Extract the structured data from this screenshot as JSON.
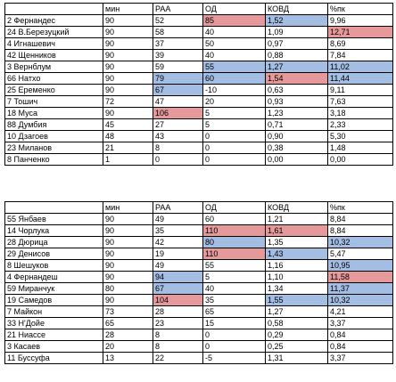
{
  "tables": [
    {
      "headers": [
        "",
        "мин",
        "РАА",
        "ОД",
        "КОВД",
        "%пк"
      ],
      "rows": [
        {
          "cells": [
            "2 Фернандес",
            "90",
            "52",
            "85",
            "1,52",
            "9,96"
          ],
          "hl": [
            "",
            "",
            "",
            "red",
            "blue",
            ""
          ]
        },
        {
          "cells": [
            "24 В.Березуцкий",
            "90",
            "58",
            "40",
            "1,09",
            "12,71"
          ],
          "hl": [
            "",
            "",
            "",
            "",
            "",
            "red"
          ]
        },
        {
          "cells": [
            "4 Игнашевич",
            "90",
            "37",
            "50",
            "0,97",
            "8,69"
          ],
          "hl": [
            "",
            "",
            "",
            "",
            "",
            ""
          ]
        },
        {
          "cells": [
            "42 Щенников",
            "90",
            "39",
            "40",
            "0,88",
            "7,84"
          ],
          "hl": [
            "",
            "",
            "",
            "",
            "",
            ""
          ]
        },
        {
          "cells": [
            "3 Вернблум",
            "90",
            "59",
            "55",
            "1,27",
            "11,02"
          ],
          "hl": [
            "",
            "",
            "",
            "blue",
            "blue",
            "blue"
          ]
        },
        {
          "cells": [
            "66 Натхо",
            "90",
            "79",
            "60",
            "1,54",
            "11,44"
          ],
          "hl": [
            "",
            "",
            "blue",
            "blue",
            "red",
            "blue"
          ]
        },
        {
          "cells": [
            "25 Еременко",
            "90",
            "67",
            "-10",
            "0,63",
            "9,11"
          ],
          "hl": [
            "",
            "",
            "blue",
            "",
            "",
            ""
          ]
        },
        {
          "cells": [
            "7 Тошич",
            "72",
            "47",
            "20",
            "0,93",
            "7,63"
          ],
          "hl": [
            "",
            "",
            "",
            "",
            "",
            ""
          ]
        },
        {
          "cells": [
            "18 Муса",
            "90",
            "106",
            "5",
            "1,23",
            "3,18"
          ],
          "hl": [
            "",
            "",
            "red",
            "",
            "",
            ""
          ]
        },
        {
          "cells": [
            "88 Думбия",
            "45",
            "27",
            "5",
            "0,71",
            "2,33"
          ],
          "hl": [
            "",
            "",
            "",
            "",
            "",
            ""
          ]
        },
        {
          "cells": [
            "10 Дзагоев",
            "48",
            "43",
            "0",
            "0,90",
            "5,30"
          ],
          "hl": [
            "",
            "",
            "",
            "",
            "",
            ""
          ]
        },
        {
          "cells": [
            "23 Миланов",
            "21",
            "8",
            "0",
            "0,38",
            "1,48"
          ],
          "hl": [
            "",
            "",
            "",
            "",
            "",
            ""
          ]
        },
        {
          "cells": [
            "8 Панченко",
            "1",
            "0",
            "0",
            "0,00",
            "0,00"
          ],
          "hl": [
            "",
            "",
            "",
            "",
            "",
            ""
          ]
        }
      ]
    },
    {
      "headers": [
        "",
        "мин",
        "РАА",
        "ОД",
        "КОВД",
        "%пк"
      ],
      "rows": [
        {
          "cells": [
            "55 Янбаев",
            "90",
            "49",
            "60",
            "1,21",
            "8,84"
          ],
          "hl": [
            "",
            "",
            "",
            "",
            "",
            ""
          ]
        },
        {
          "cells": [
            "14 Чорлука",
            "90",
            "35",
            "110",
            "1,61",
            "8,84"
          ],
          "hl": [
            "",
            "",
            "",
            "red",
            "red",
            ""
          ]
        },
        {
          "cells": [
            "28 Дюрица",
            "90",
            "42",
            "80",
            "1,35",
            "10,32"
          ],
          "hl": [
            "",
            "",
            "",
            "blue",
            "",
            "blue"
          ]
        },
        {
          "cells": [
            "29 Денисов",
            "90",
            "19",
            "110",
            "1,43",
            "5,47"
          ],
          "hl": [
            "",
            "",
            "",
            "red",
            "blue",
            ""
          ]
        },
        {
          "cells": [
            "8 Шешуков",
            "90",
            "49",
            "55",
            "1,16",
            "10,95"
          ],
          "hl": [
            "",
            "",
            "",
            "",
            "",
            "blue"
          ]
        },
        {
          "cells": [
            "4 Фернандеш",
            "90",
            "94",
            "5",
            "1,10",
            "11,58"
          ],
          "hl": [
            "",
            "",
            "blue",
            "",
            "",
            "red"
          ]
        },
        {
          "cells": [
            "59 Миранчук",
            "80",
            "67",
            "40",
            "1,34",
            "11,37"
          ],
          "hl": [
            "",
            "",
            "blue",
            "",
            "",
            "blue"
          ]
        },
        {
          "cells": [
            "19 Самедов",
            "90",
            "104",
            "35",
            "1,55",
            "10,32"
          ],
          "hl": [
            "",
            "",
            "red",
            "",
            "blue",
            "blue"
          ]
        },
        {
          "cells": [
            "7 Майкон",
            "73",
            "28",
            "65",
            "1,27",
            "4,21"
          ],
          "hl": [
            "",
            "",
            "",
            "",
            "",
            ""
          ]
        },
        {
          "cells": [
            "33 Н'Дойе",
            "65",
            "23",
            "15",
            "0,58",
            "3,37"
          ],
          "hl": [
            "",
            "",
            "",
            "",
            "",
            ""
          ]
        },
        {
          "cells": [
            "21 Ниассе",
            "28",
            "8",
            "0",
            "0,29",
            "0,84"
          ],
          "hl": [
            "",
            "",
            "",
            "",
            "",
            ""
          ]
        },
        {
          "cells": [
            "3 Касаев",
            "20",
            "8",
            "0",
            "0,25",
            "0,84"
          ],
          "hl": [
            "",
            "",
            "",
            "",
            "",
            ""
          ]
        },
        {
          "cells": [
            "11 Буссуфа",
            "13",
            "22",
            "-5",
            "1,31",
            "3,37"
          ],
          "hl": [
            "",
            "",
            "",
            "",
            "",
            ""
          ]
        }
      ]
    }
  ],
  "colors": {
    "red": "#e6999a",
    "blue": "#a4bde3"
  }
}
